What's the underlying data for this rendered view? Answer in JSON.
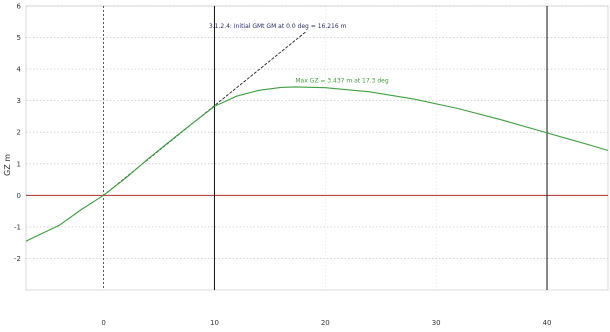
{
  "chart_data": {
    "type": "line",
    "xlim": [
      -7,
      45.5
    ],
    "ylim": [
      -3,
      6
    ],
    "x_ticks": [
      0,
      10,
      20,
      30,
      40
    ],
    "y_ticks": [
      -2,
      -1,
      0,
      1,
      2,
      3,
      4,
      5,
      6
    ],
    "ylabel": "GZ m",
    "xlabel": "",
    "grid": true,
    "series": [
      {
        "name": "",
        "color": "#3f9f3f",
        "x": [
          -7,
          -4,
          -2,
          0,
          2,
          4,
          6,
          8,
          10,
          12,
          14,
          16,
          17.3,
          20,
          24,
          28,
          32,
          36,
          40,
          42,
          44,
          45.5
        ],
        "y": [
          -1.45,
          -0.95,
          -0.45,
          0.0,
          0.55,
          1.15,
          1.72,
          2.28,
          2.82,
          3.14,
          3.33,
          3.42,
          3.437,
          3.41,
          3.28,
          3.05,
          2.75,
          2.38,
          1.98,
          1.78,
          1.58,
          1.42
        ]
      }
    ],
    "reference_lines": {
      "baseline_y": 0,
      "baseline_color": "#b03030",
      "dotted_vertical_x": 0,
      "solid_vertical_x": [
        10,
        40
      ]
    },
    "gm_line": {
      "x": [
        0,
        18.3
      ],
      "y": [
        0,
        5.2
      ],
      "color": "#222222"
    },
    "annotations": [
      {
        "text": "3.1.2.4: Initial GMt GM at 0.0 deg = 16.216 m",
        "x": 9.5,
        "y": 5.3,
        "color": "#2a2a6a"
      },
      {
        "text": "Max GZ = 3.437 m at 17.3 deg",
        "x": 17.3,
        "y": 3.58,
        "color": "#3f9f3f"
      }
    ]
  }
}
